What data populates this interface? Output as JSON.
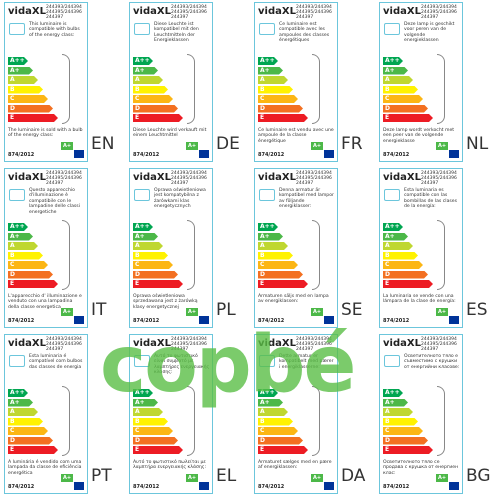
{
  "shared": {
    "brand": "vidaXL",
    "models": [
      "244393/244394",
      "244395/244396",
      "244397"
    ],
    "regulation": "874/2012",
    "sold_class": "A+",
    "classes": [
      {
        "label": "A++",
        "color": "#00a651"
      },
      {
        "label": "A+",
        "color": "#4cb848"
      },
      {
        "label": "A",
        "color": "#bfd730"
      },
      {
        "label": "B",
        "color": "#fff200"
      },
      {
        "label": "C",
        "color": "#fcb614"
      },
      {
        "label": "D",
        "color": "#f37021"
      },
      {
        "label": "E",
        "color": "#ed1c24"
      }
    ]
  },
  "labels": [
    {
      "lang": "EN",
      "compatible": "This luminaire is compatible with bulbs of the energy class:",
      "sold": "The luminaire is sold with a bulb of the energy class:"
    },
    {
      "lang": "DE",
      "compatible": "Diese Leuchte ist kompatibel mit den Leuchtmitteln der Energieklassen",
      "sold": "Diese Leuchte wird verkauft mit einem Leuchtmittel"
    },
    {
      "lang": "FR",
      "compatible": "Ce luminaire est compatible avec les ampoules des classes énergétiques",
      "sold": "Ce luminaire est vendu avec une ampoule de la classe énergétique"
    },
    {
      "lang": "NL",
      "compatible": "Deze lamp is geschikt voor peren van de volgende energieklassen",
      "sold": "Deze lamp wordt verkocht met een peer van de volgende energieklasse"
    },
    {
      "lang": "IT",
      "compatible": "Questo apparecchio d'illuminazione è compatibile con le lampadine delle classi energetiche",
      "sold": "L'apparecchio d' illuminazione e venduto con una lampadina della classe energetica"
    },
    {
      "lang": "PL",
      "compatible": "Oprawa oświetleniowa jest kompatybilna z żarówkami klas energetycznych",
      "sold": "Oprawa oświetleniowa sprzedawana jest z żarówką klasy energetycznej"
    },
    {
      "lang": "SE",
      "compatible": "Denna armatur är kompatibel med lampor av följande energiklasser:",
      "sold": "Armaturen säljs med en lampa av energiklassen:"
    },
    {
      "lang": "ES",
      "compatible": "Esta luminaria es compatible con las bombillas de las clases de la energía:",
      "sold": "La luminaria se vende con una lámpara de la clase de energía:"
    },
    {
      "lang": "PT",
      "compatible": "Esta luminaria é compatível com bulbos das classes de energia",
      "sold": "A luminária é vendido com uma lampada da classe de eficiência energética"
    },
    {
      "lang": "EL",
      "compatible": "Αυτό το φωτιστικό είναι συμβατό με λαμπτήρες ενεργειακής κλάσης:",
      "sold": "Αυτό το φωτιστικό πωλείται με λαμπτήρα ενεργειακής κλάσης:"
    },
    {
      "lang": "DA",
      "compatible": "Dette armatur er kompatibelt med pærer i energiklasserne:",
      "sold": "Armaturet sælges med en pære af energiklassen:"
    },
    {
      "lang": "BG",
      "compatible": "Осветителното тяло е съвместимо с крушки от енергийни класове:",
      "sold": "Осветителното тяло се продава с крушка от енергиен клас:"
    }
  ],
  "watermark": "copbé"
}
